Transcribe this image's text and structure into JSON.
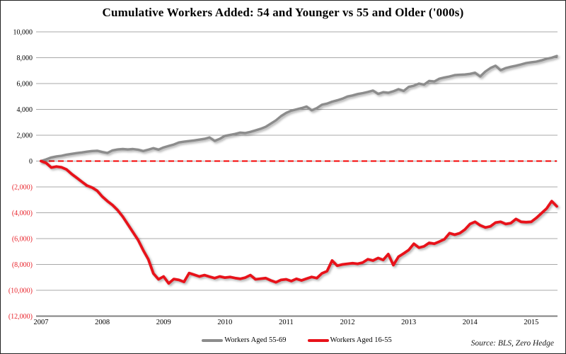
{
  "title": "Cumulative Workers Added: 54 and Younger vs 55 and Older ('000s)",
  "source_note": "Source: BLS, Zero Hedge",
  "legend": {
    "items": [
      {
        "label": "Workers Aged 55-69",
        "color": "#8c8c8c"
      },
      {
        "label": "Workers Aged 16-55",
        "color": "#e8121a"
      }
    ]
  },
  "colors": {
    "series_older": "#8c8c8c",
    "series_younger": "#e8121a",
    "zero_line": "#f40000",
    "gridline": "#a8a8a8",
    "axis_line": "#808080",
    "negative_tick_label": "#e8232b",
    "positive_tick_label": "#000000"
  },
  "chart_data": {
    "type": "line",
    "title": "Cumulative Workers Added: 54 and Younger vs 55 and Older ('000s)",
    "x_unit": "month",
    "x_range": "Jan 2007 - Jun 2015",
    "x_tick_labels": [
      "2007",
      "2008",
      "2009",
      "2010",
      "2011",
      "2012",
      "2013",
      "2014",
      "2015"
    ],
    "months_per_tick": 12,
    "ylim": [
      -12000,
      10000
    ],
    "y_ticks": [
      10000,
      8000,
      6000,
      4000,
      2000,
      0,
      -2000,
      -4000,
      -6000,
      -8000,
      -10000,
      -12000
    ],
    "y_tick_labels": [
      "10,000",
      "8,000",
      "6,000",
      "4,000",
      "2,000",
      "0",
      "(2,000)",
      "(4,000)",
      "(6,000)",
      "(8,000)",
      "(10,000)",
      "(12,000)"
    ],
    "grid": "horizontal",
    "zero_line": {
      "style": "dashed",
      "color": "#f40000"
    },
    "legend_position": "bottom",
    "series": [
      {
        "name": "Workers Aged 55-69",
        "color": "#8c8c8c",
        "values": [
          0,
          130,
          280,
          360,
          410,
          500,
          560,
          620,
          670,
          730,
          780,
          800,
          700,
          630,
          830,
          900,
          930,
          900,
          930,
          880,
          780,
          880,
          1000,
          890,
          1060,
          1170,
          1280,
          1440,
          1500,
          1550,
          1600,
          1660,
          1720,
          1830,
          1560,
          1720,
          1950,
          2020,
          2100,
          2200,
          2170,
          2260,
          2380,
          2500,
          2650,
          2900,
          3150,
          3480,
          3730,
          3900,
          4000,
          4100,
          4220,
          3930,
          4100,
          4360,
          4450,
          4600,
          4700,
          4830,
          5000,
          5080,
          5190,
          5260,
          5350,
          5460,
          5200,
          5330,
          5290,
          5400,
          5560,
          5430,
          5740,
          5830,
          6000,
          5920,
          6200,
          6160,
          6380,
          6470,
          6550,
          6650,
          6680,
          6700,
          6750,
          6840,
          6550,
          6930,
          7200,
          7380,
          7030,
          7200,
          7300,
          7380,
          7480,
          7590,
          7650,
          7700,
          7800,
          7920,
          8000,
          8130
        ]
      },
      {
        "name": "Workers Aged 16-55",
        "color": "#e8121a",
        "values": [
          0,
          -150,
          -500,
          -420,
          -480,
          -650,
          -1000,
          -1300,
          -1600,
          -1900,
          -2050,
          -2300,
          -2750,
          -3100,
          -3400,
          -3800,
          -4300,
          -4900,
          -5500,
          -6100,
          -6900,
          -7600,
          -8700,
          -9150,
          -8930,
          -9470,
          -9130,
          -9200,
          -9350,
          -8670,
          -8800,
          -8930,
          -8830,
          -8950,
          -9060,
          -8930,
          -9020,
          -8970,
          -9050,
          -9110,
          -9020,
          -8830,
          -9150,
          -9100,
          -9060,
          -9240,
          -9380,
          -9200,
          -9150,
          -9290,
          -9110,
          -9240,
          -9100,
          -8970,
          -9060,
          -8690,
          -8520,
          -7700,
          -8100,
          -8000,
          -7950,
          -7900,
          -7950,
          -7850,
          -7600,
          -7700,
          -7500,
          -7650,
          -7200,
          -8050,
          -7400,
          -7150,
          -6880,
          -6400,
          -6700,
          -6600,
          -6330,
          -6400,
          -6230,
          -6050,
          -5580,
          -5700,
          -5580,
          -5300,
          -4870,
          -4700,
          -4975,
          -5140,
          -5050,
          -4760,
          -4700,
          -4870,
          -4800,
          -4480,
          -4700,
          -4730,
          -4700,
          -4400,
          -4040,
          -3670,
          -3100,
          -3500
        ]
      }
    ]
  }
}
